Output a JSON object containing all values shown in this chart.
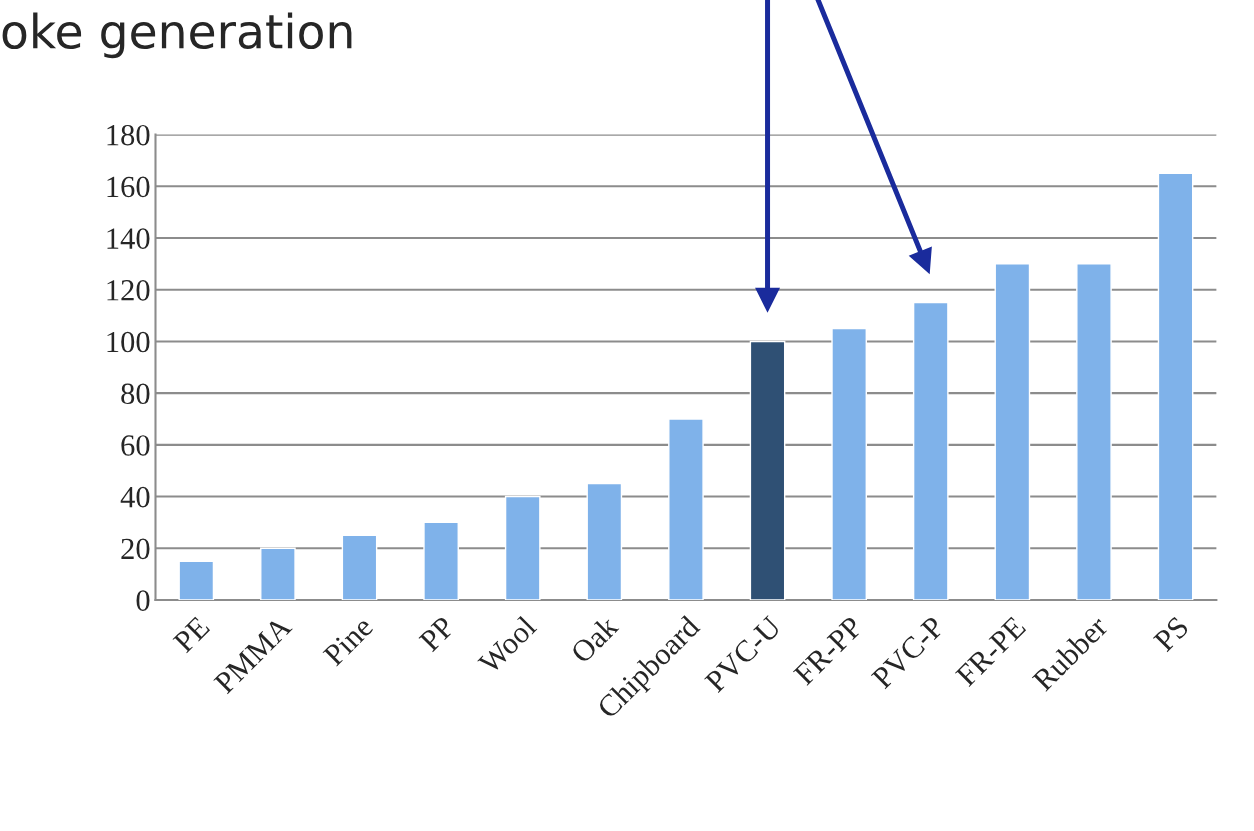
{
  "chart_data": {
    "type": "bar",
    "title": "oke generation",
    "categories": [
      "PE",
      "PMMA",
      "Pine",
      "PP",
      "Wool",
      "Oak",
      "Chipboard",
      "PVC-U",
      "FR-PP",
      "PVC-P",
      "FR-PE",
      "Rubber",
      "PS"
    ],
    "values": [
      15,
      20,
      25,
      30,
      40,
      45,
      70,
      100,
      105,
      115,
      130,
      130,
      165
    ],
    "colors": [
      "#7fb2ea",
      "#7fb2ea",
      "#7fb2ea",
      "#7fb2ea",
      "#7fb2ea",
      "#7fb2ea",
      "#7fb2ea",
      "#2f5074",
      "#7fb2ea",
      "#7fb2ea",
      "#7fb2ea",
      "#7fb2ea",
      "#7fb2ea"
    ],
    "ylim": [
      0,
      180
    ],
    "yticks": [
      0,
      20,
      40,
      60,
      80,
      100,
      120,
      140,
      160,
      180
    ],
    "grid": "y"
  }
}
